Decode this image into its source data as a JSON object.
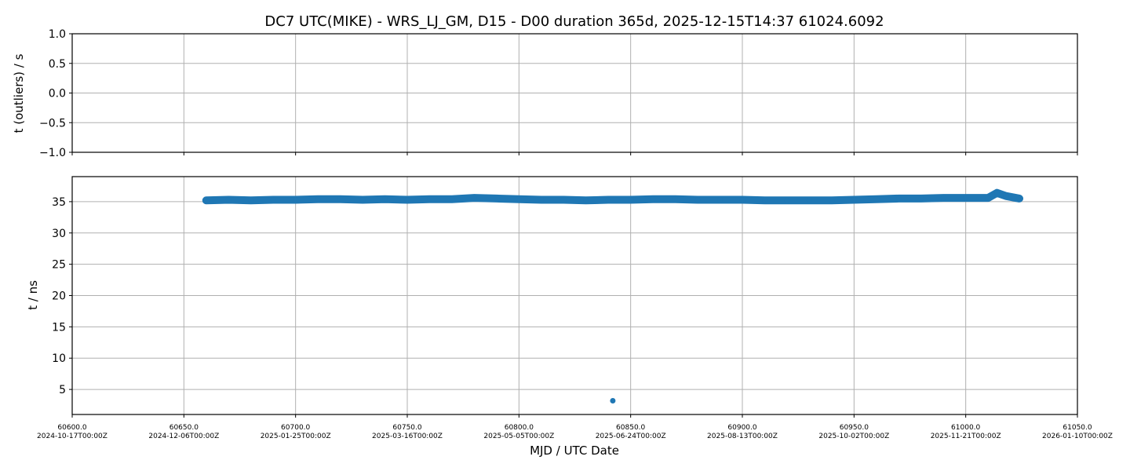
{
  "chart_data": [
    {
      "type": "scatter",
      "title": "DC7 UTC(MIKE) - WRS_LJ_GM, D15 - D00 duration 365d, 2025-12-15T14:37 61024.6092",
      "ylabel": "t (outliers) / s",
      "xlim": [
        60600.0,
        61050.0
      ],
      "ylim": [
        -1.0,
        1.0
      ],
      "yticks": [
        "1.0",
        "0.5",
        "0.0",
        "−0.5",
        "−1.0"
      ],
      "grid": true,
      "series": [
        {
          "x": [],
          "y": []
        }
      ]
    },
    {
      "type": "scatter",
      "ylabel": "t / ns",
      "xlabel": "MJD / UTC Date",
      "xlim": [
        60600.0,
        61050.0
      ],
      "ylim": [
        1.0,
        39.0
      ],
      "yticks": [
        "35",
        "30",
        "25",
        "20",
        "15",
        "10",
        "5"
      ],
      "xticks": [
        {
          "mjd": "60600.0",
          "date": "2024-10-17T00:00Z"
        },
        {
          "mjd": "60650.0",
          "date": "2024-12-06T00:00Z"
        },
        {
          "mjd": "60700.0",
          "date": "2025-01-25T00:00Z"
        },
        {
          "mjd": "60750.0",
          "date": "2025-03-16T00:00Z"
        },
        {
          "mjd": "60800.0",
          "date": "2025-05-05T00:00Z"
        },
        {
          "mjd": "60850.0",
          "date": "2025-06-24T00:00Z"
        },
        {
          "mjd": "60900.0",
          "date": "2025-08-13T00:00Z"
        },
        {
          "mjd": "60950.0",
          "date": "2025-10-02T00:00Z"
        },
        {
          "mjd": "61000.0",
          "date": "2025-11-21T00:00Z"
        },
        {
          "mjd": "61050.0",
          "date": "2026-01-10T00:00Z"
        }
      ],
      "grid": true,
      "series": [
        {
          "color": "#1f77b4",
          "x": [
            60660,
            60670,
            60680,
            60690,
            60700,
            60710,
            60720,
            60730,
            60740,
            60750,
            60760,
            60770,
            60780,
            60790,
            60800,
            60810,
            60820,
            60830,
            60840,
            60842,
            60850,
            60860,
            60870,
            60880,
            60890,
            60900,
            60910,
            60920,
            60930,
            60940,
            60950,
            60960,
            60970,
            60980,
            60990,
            61000,
            61010,
            61014,
            61018,
            61024
          ],
          "y": [
            35.2,
            35.3,
            35.2,
            35.3,
            35.3,
            35.4,
            35.4,
            35.3,
            35.4,
            35.3,
            35.4,
            35.4,
            35.6,
            35.5,
            35.4,
            35.3,
            35.3,
            35.2,
            35.3,
            3.2,
            35.3,
            35.4,
            35.4,
            35.3,
            35.3,
            35.3,
            35.2,
            35.2,
            35.2,
            35.2,
            35.3,
            35.4,
            35.5,
            35.5,
            35.6,
            35.6,
            35.6,
            36.4,
            35.9,
            35.5
          ]
        }
      ]
    }
  ]
}
